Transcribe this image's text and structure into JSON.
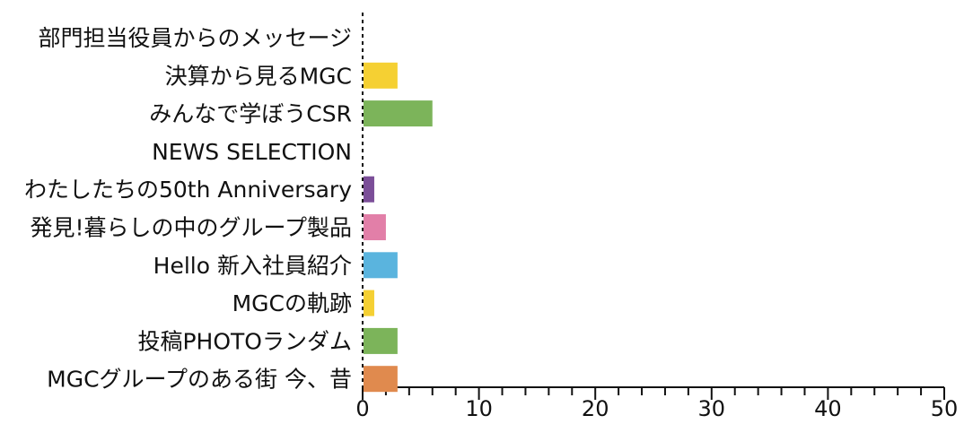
{
  "chart_data": {
    "type": "bar",
    "orientation": "horizontal",
    "categories": [
      "部門担当役員からのメッセージ",
      "決算から見るMGC",
      "みんなで学ぼうCSR",
      "NEWS SELECTION",
      "わたしたちの50th Anniversary",
      "発見!暮らしの中のグループ製品",
      "Hello 新入社員紹介",
      "MGCの軌跡",
      "投稿PHOTOランダム",
      "MGCグループのある街 今、昔"
    ],
    "values": [
      0,
      3,
      6,
      0,
      1,
      2,
      3,
      1,
      3,
      3
    ],
    "colors": [
      "#f5d033",
      "#f5d033",
      "#7cb45a",
      "#7cb45a",
      "#7b4e98",
      "#e27fa8",
      "#5ab4de",
      "#f5d033",
      "#7cb45a",
      "#e08a4e"
    ],
    "xlim": [
      0,
      50
    ],
    "x_ticks": [
      "0",
      "10",
      "20",
      "30",
      "40",
      "50"
    ],
    "grid": false,
    "title": "",
    "xlabel": "",
    "ylabel": ""
  }
}
